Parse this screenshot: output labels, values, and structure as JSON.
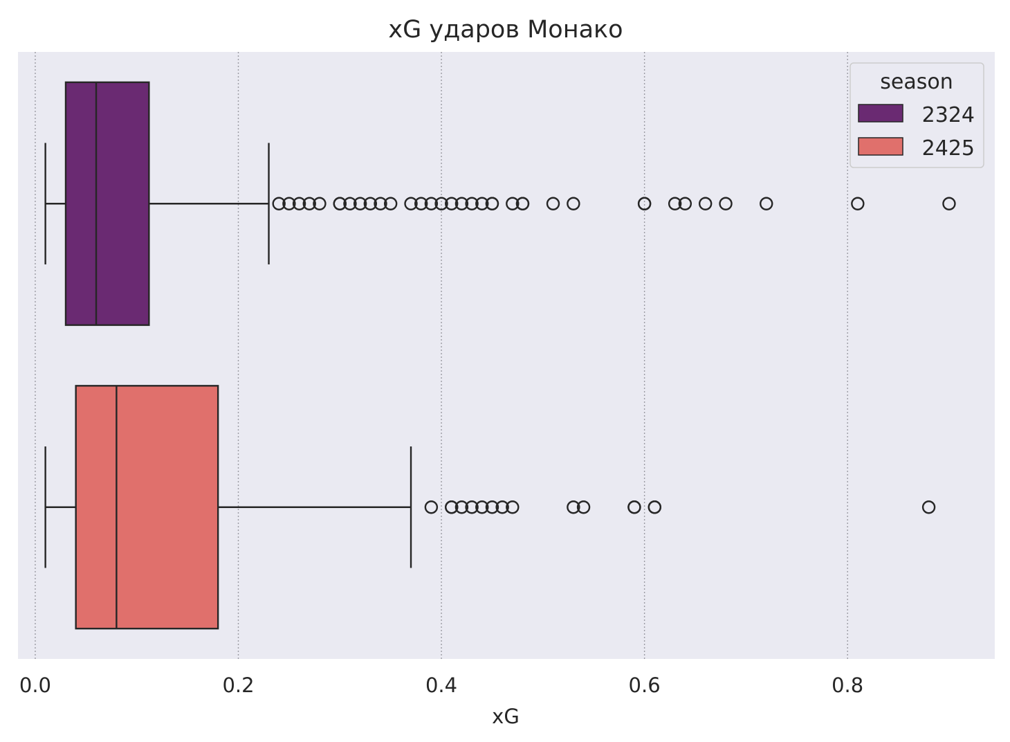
{
  "chart_data": {
    "type": "boxplot",
    "orientation": "horizontal",
    "title": "xG ударов Монако",
    "xlabel": "xG",
    "ylabel": "",
    "xlim": [
      -0.017,
      0.945
    ],
    "xticks": [
      0.0,
      0.2,
      0.4,
      0.6,
      0.8
    ],
    "xtick_labels": [
      "0.0",
      "0.2",
      "0.4",
      "0.6",
      "0.8"
    ],
    "grid": "vertical dotted",
    "background": "#eaeaf2",
    "legend": {
      "title": "season",
      "position": "top-right"
    },
    "series": [
      {
        "name": "2324",
        "color": "#6a2a72",
        "whisker_low": 0.01,
        "q1": 0.03,
        "median": 0.06,
        "q3": 0.112,
        "whisker_high": 0.23,
        "outliers": [
          0.24,
          0.25,
          0.26,
          0.27,
          0.28,
          0.3,
          0.3,
          0.31,
          0.32,
          0.33,
          0.34,
          0.35,
          0.37,
          0.38,
          0.39,
          0.4,
          0.41,
          0.42,
          0.43,
          0.44,
          0.45,
          0.45,
          0.47,
          0.48,
          0.48,
          0.51,
          0.53,
          0.6,
          0.6,
          0.63,
          0.64,
          0.66,
          0.68,
          0.72,
          0.81,
          0.9
        ]
      },
      {
        "name": "2425",
        "color": "#e0706c",
        "whisker_low": 0.01,
        "q1": 0.04,
        "median": 0.08,
        "q3": 0.18,
        "whisker_high": 0.37,
        "outliers": [
          0.39,
          0.41,
          0.41,
          0.42,
          0.43,
          0.44,
          0.45,
          0.46,
          0.47,
          0.53,
          0.54,
          0.59,
          0.59,
          0.61,
          0.61,
          0.88
        ]
      }
    ]
  }
}
